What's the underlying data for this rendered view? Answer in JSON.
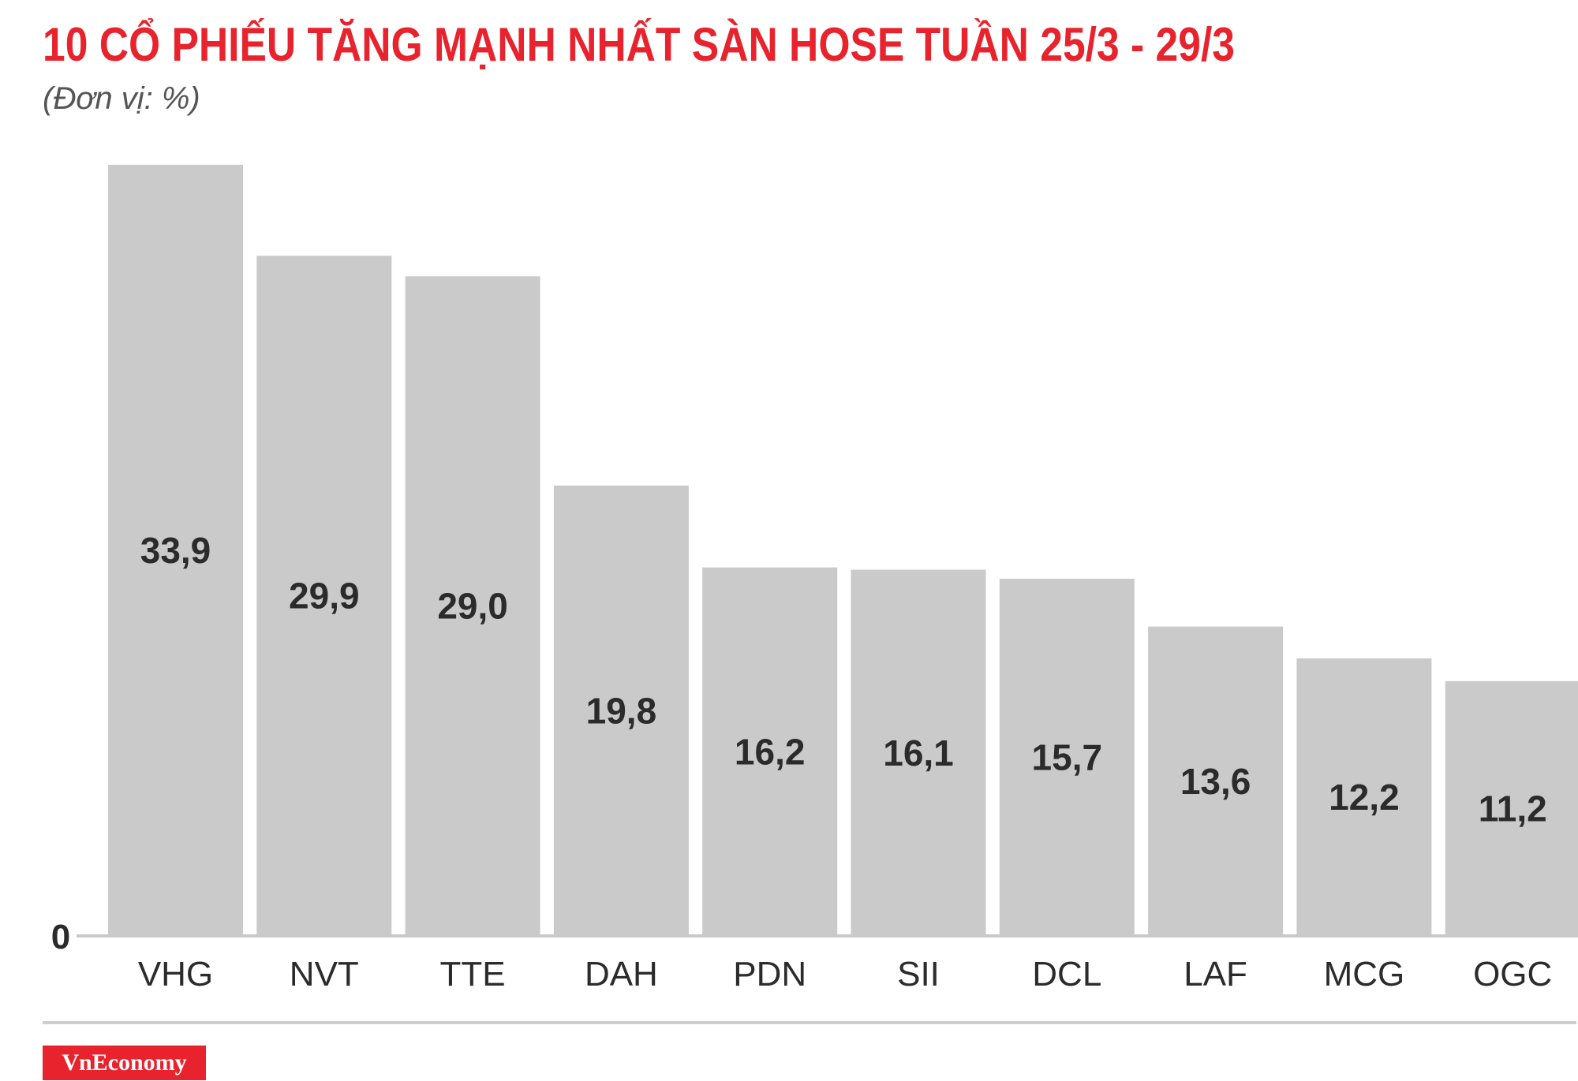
{
  "title": "10 CỔ PHIẾU TĂNG MẠNH NHẤT SÀN HOSE TUẦN 25/3 - 29/3",
  "unit_label": "(Đơn vị: %)",
  "brand": "VnEconomy",
  "colors": {
    "title": "#e8232d",
    "bar": "#cbcacb",
    "logo_bg": "#e8232d",
    "text": "#2b2b2b"
  },
  "chart_data": {
    "type": "bar",
    "title": "10 CỔ PHIẾU TĂNG MẠNH NHẤT SÀN HOSE TUẦN 25/3 - 29/3",
    "subtitle": "(Đơn vị: %)",
    "categories": [
      "VHG",
      "NVT",
      "TTE",
      "DAH",
      "PDN",
      "SII",
      "DCL",
      "LAF",
      "MCG",
      "OGC"
    ],
    "values": [
      33.9,
      29.9,
      29.0,
      19.8,
      16.2,
      16.1,
      15.7,
      13.6,
      12.2,
      11.2
    ],
    "value_labels": [
      "33,9",
      "29,9",
      "29,0",
      "19,8",
      "16,2",
      "16,1",
      "15,7",
      "13,6",
      "12,2",
      "11,2"
    ],
    "y_tick_labels": [
      "0"
    ],
    "ylim": [
      0,
      33.9
    ],
    "grid": false,
    "legend": "none"
  }
}
